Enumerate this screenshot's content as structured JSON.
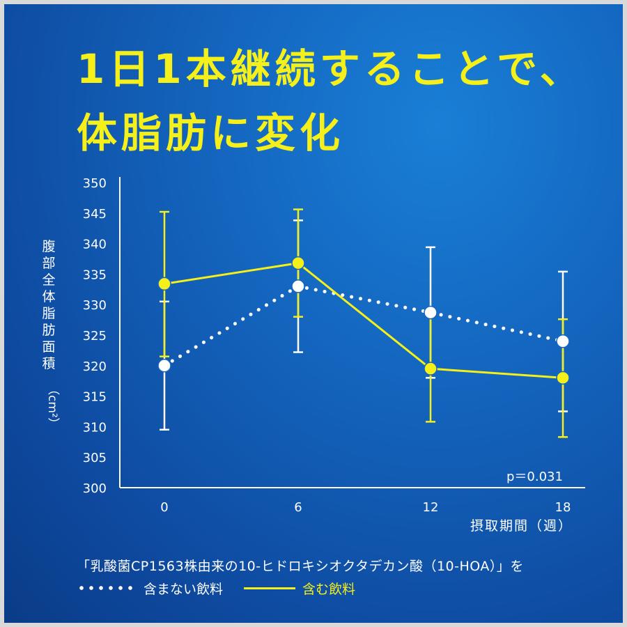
{
  "header": {
    "line1": "1日1本継続することで、",
    "line2": "体脂肪に変化"
  },
  "chart_data": {
    "type": "line",
    "ylabel": "腹部全体脂肪面積",
    "yunit": "（cm²）",
    "xlabel": "摂取期間（週）",
    "x": [
      0,
      6,
      12,
      18
    ],
    "xticks": [
      "0",
      "6",
      "12",
      "18"
    ],
    "ylim": [
      300,
      350
    ],
    "yticks": [
      300,
      305,
      310,
      315,
      320,
      325,
      330,
      335,
      340,
      345,
      350
    ],
    "grid": false,
    "series": [
      {
        "name": "含まない飲料",
        "style": "dotted",
        "color": "#ffffff",
        "values": [
          320.0,
          333.0,
          328.7,
          324.0
        ],
        "error_low": [
          309.5,
          322.2,
          318.0,
          312.5
        ],
        "error_high": [
          330.5,
          343.8,
          339.4,
          335.4
        ]
      },
      {
        "name": "含む飲料",
        "style": "solid",
        "color": "#f5ef1a",
        "values": [
          333.4,
          336.8,
          319.5,
          318.0
        ],
        "error_low": [
          321.5,
          328.0,
          310.8,
          308.3
        ],
        "error_high": [
          345.2,
          345.6,
          328.2,
          327.6
        ]
      }
    ],
    "annotation": "p＝0.031"
  },
  "footer": {
    "note": "「乳酸菌CP1563株由来の10-ヒドロキシオクタデカン酸（10-HOA）」を",
    "legend_without": "含まない飲料",
    "legend_with": "含む飲料"
  },
  "colors": {
    "accent_yellow": "#f5ef1a",
    "background_blue": "#1466bf",
    "white": "#ffffff"
  }
}
